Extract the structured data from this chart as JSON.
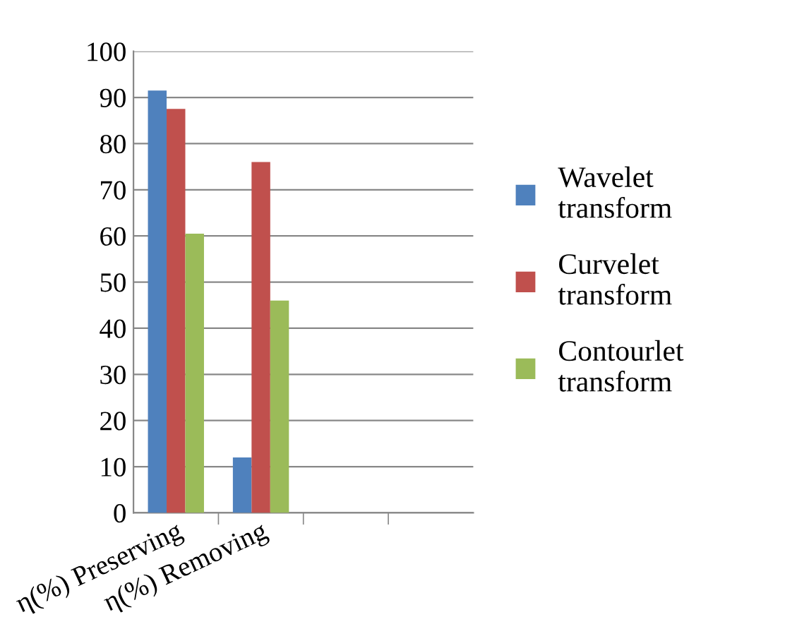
{
  "chart_data": {
    "type": "bar",
    "categories": [
      "η(%) Preserving",
      "η(%) Removing",
      null,
      null
    ],
    "series": [
      {
        "name": "Wavelet transform",
        "color": "#4f81bd",
        "values": [
          91.5,
          12,
          null,
          null
        ]
      },
      {
        "name": "Curvelet transform",
        "color": "#c0504d",
        "values": [
          87.5,
          76,
          null,
          null
        ]
      },
      {
        "name": "Contourlet transform",
        "color": "#9bbb59",
        "values": [
          60.5,
          46,
          null,
          null
        ]
      }
    ],
    "ylim": [
      0,
      100
    ],
    "yticks": [
      0,
      10,
      20,
      30,
      40,
      50,
      60,
      70,
      80,
      90,
      100
    ],
    "grid": "y",
    "legend": "right"
  }
}
